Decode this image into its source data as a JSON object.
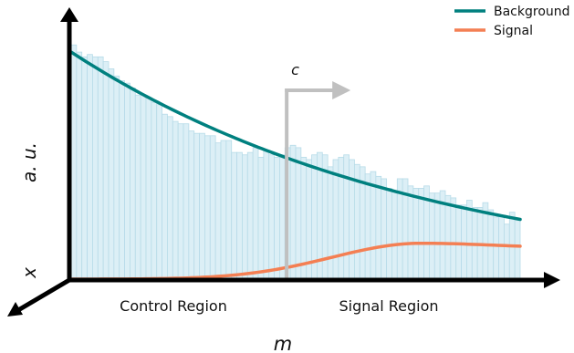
{
  "legend": {
    "placement": "top-right",
    "items": [
      {
        "label": "Background",
        "color": "#00807f"
      },
      {
        "label": "Signal",
        "color": "#f47f53"
      }
    ]
  },
  "axes": {
    "x_label": "m",
    "y_label": "a. u.",
    "z_label": "x"
  },
  "regions": {
    "control": "Control Region",
    "signal": "Signal Region"
  },
  "cut": {
    "label": "c",
    "color": "#c0c0c0"
  },
  "chart_data": {
    "type": "bar",
    "title": "",
    "histogram": {
      "fill": "#dcefF6",
      "edge": "#b7dbe8",
      "values": [
        0.98,
        0.95,
        0.93,
        0.94,
        0.93,
        0.93,
        0.91,
        0.88,
        0.85,
        0.83,
        0.82,
        0.8,
        0.77,
        0.77,
        0.76,
        0.74,
        0.73,
        0.69,
        0.68,
        0.66,
        0.65,
        0.65,
        0.62,
        0.61,
        0.61,
        0.6,
        0.6,
        0.57,
        0.58,
        0.58,
        0.53,
        0.53,
        0.52,
        0.53,
        0.55,
        0.51,
        0.54,
        0.52,
        0.51,
        0.52,
        0.55,
        0.56,
        0.55,
        0.51,
        0.5,
        0.52,
        0.53,
        0.52,
        0.47,
        0.5,
        0.51,
        0.52,
        0.5,
        0.48,
        0.47,
        0.44,
        0.45,
        0.43,
        0.42,
        0.38,
        0.37,
        0.42,
        0.42,
        0.39,
        0.38,
        0.38,
        0.39,
        0.36,
        0.36,
        0.37,
        0.35,
        0.34,
        0.31,
        0.31,
        0.33,
        0.3,
        0.3,
        0.32,
        0.29,
        0.26,
        0.26,
        0.23,
        0.28,
        0.25
      ]
    },
    "background_curve": {
      "start": 0.95,
      "end": 0.25,
      "decay": 1.25
    },
    "signal_curve": {
      "peak": 0.15,
      "mu": 0.78,
      "sigma": 0.2,
      "tail": 0.13
    },
    "cut_position": 0.48
  }
}
